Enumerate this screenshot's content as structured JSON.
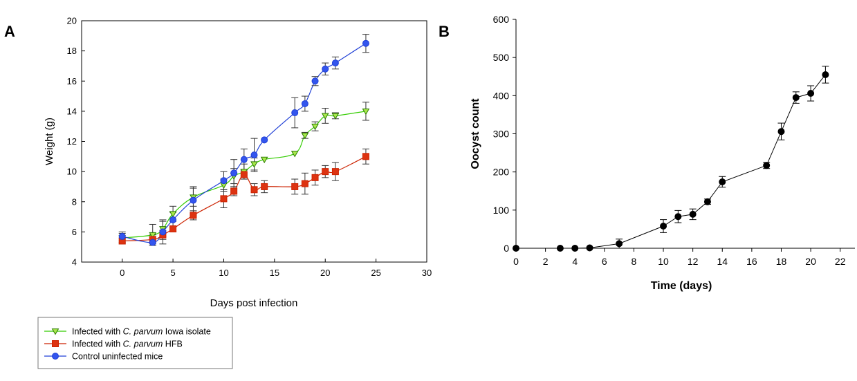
{
  "chart_data": [
    {
      "panel": "A",
      "type": "line",
      "xlabel": "Days post infection",
      "ylabel": "Weight (g)",
      "xlim": [
        -4,
        30
      ],
      "ylim": [
        4,
        20
      ],
      "xticks": [
        0,
        5,
        10,
        15,
        20,
        25,
        30
      ],
      "xtick_labels": [
        "0",
        "5",
        "10",
        "15",
        "20",
        "25",
        "30"
      ],
      "yticks": [
        4,
        6,
        8,
        10,
        12,
        14,
        16,
        18,
        20
      ],
      "grid": false,
      "legend_position": "bottom-left",
      "series": [
        {
          "legend_parts": [
            {
              "text": "Infected with ",
              "italic": false
            },
            {
              "text": "C. parvum",
              "italic": true
            },
            {
              "text": " Iowa isolate",
              "italic": false
            }
          ],
          "color": "#33cc00",
          "fill": "#a8e84c",
          "marker": "triangle-down",
          "x": [
            0,
            3,
            4,
            5,
            7,
            10,
            11,
            12,
            13,
            14,
            17,
            18,
            19,
            20,
            21,
            24
          ],
          "y": [
            5.6,
            5.8,
            6.2,
            7.2,
            8.3,
            9.1,
            9.7,
            10.0,
            10.5,
            10.8,
            11.2,
            12.4,
            13.0,
            13.7,
            13.7,
            14.0
          ],
          "err": [
            0.3,
            0.7,
            0.5,
            0.5,
            0.6,
            0.4,
            0.5,
            0.5,
            0.4,
            0.0,
            0.0,
            0.2,
            0.3,
            0.5,
            0.2,
            0.6
          ]
        },
        {
          "legend_parts": [
            {
              "text": "Infected with ",
              "italic": false
            },
            {
              "text": "C. parvum",
              "italic": true
            },
            {
              "text": " HFB",
              "italic": false
            }
          ],
          "color": "#cc2200",
          "fill": "#dd3311",
          "marker": "square",
          "x": [
            0,
            3,
            4,
            5,
            7,
            10,
            11,
            12,
            13,
            14,
            17,
            18,
            19,
            20,
            21,
            24
          ],
          "y": [
            5.4,
            5.5,
            5.8,
            6.2,
            7.1,
            8.2,
            8.7,
            9.8,
            8.8,
            9.0,
            9.0,
            9.2,
            9.6,
            10.0,
            10.0,
            11.0
          ],
          "err": [
            0.2,
            0.3,
            0.3,
            0.2,
            0.3,
            0.6,
            0.3,
            0.3,
            0.4,
            0.4,
            0.5,
            0.7,
            0.5,
            0.4,
            0.6,
            0.5
          ]
        },
        {
          "legend_parts": [
            {
              "text": "Control uninfected mice",
              "italic": false
            }
          ],
          "color": "#1f3fd6",
          "fill": "#3355ee",
          "marker": "circle",
          "x": [
            0,
            3,
            4,
            5,
            7,
            10,
            11,
            12,
            13,
            14,
            17,
            18,
            19,
            20,
            21,
            24
          ],
          "y": [
            5.7,
            5.3,
            6.0,
            6.8,
            8.1,
            9.4,
            9.9,
            10.8,
            11.1,
            12.1,
            13.9,
            14.5,
            16.0,
            16.8,
            17.2,
            18.5
          ],
          "err": [
            0.3,
            0.2,
            0.8,
            0.5,
            0.9,
            0.6,
            0.9,
            0.7,
            1.1,
            0.0,
            1.0,
            0.5,
            0.3,
            0.4,
            0.4,
            0.6
          ]
        }
      ]
    },
    {
      "panel": "B",
      "type": "line",
      "xlabel": "Time (days)",
      "ylabel": "Oocyst count",
      "xlim": [
        0,
        23
      ],
      "ylim": [
        0,
        600
      ],
      "xticks": [
        0,
        2,
        4,
        6,
        8,
        10,
        12,
        14,
        16,
        18,
        20,
        22
      ],
      "yticks": [
        0,
        100,
        200,
        300,
        400,
        500,
        600
      ],
      "grid": false,
      "series": [
        {
          "color": "#000000",
          "fill": "#000000",
          "marker": "circle",
          "x": [
            0,
            3,
            4,
            5,
            7,
            10,
            11,
            12,
            13,
            14,
            17,
            18,
            19,
            20,
            21
          ],
          "y": [
            0,
            0,
            0,
            1,
            12,
            58,
            83,
            89,
            122,
            174,
            217,
            306,
            395,
            406,
            455
          ],
          "err": [
            0,
            0,
            0,
            0,
            12,
            17,
            16,
            14,
            7,
            14,
            8,
            22,
            15,
            20,
            22
          ]
        }
      ]
    }
  ]
}
